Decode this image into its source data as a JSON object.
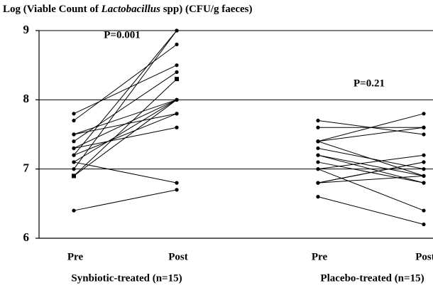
{
  "chart_data": {
    "type": "paired-dot",
    "title": [
      "Log (Viable Count of ",
      "Lactobacillus",
      " spp) (CFU/g faeces)"
    ],
    "ylim": [
      6,
      9
    ],
    "yticks": [
      6,
      7,
      8,
      9
    ],
    "grid": true,
    "color": "#000000",
    "groups": [
      {
        "name": "Synbiotic-treated (n=15)",
        "annotation": "P=0.001",
        "categories": [
          "Pre",
          "Post"
        ],
        "pairs": [
          [
            7.8,
            8.5
          ],
          [
            7.7,
            8.8
          ],
          [
            7.5,
            8.0
          ],
          [
            7.5,
            7.8
          ],
          [
            7.4,
            8.4
          ],
          [
            7.3,
            8.0
          ],
          [
            7.3,
            7.6
          ],
          [
            7.2,
            9.0
          ],
          [
            7.1,
            6.8
          ],
          [
            7.1,
            8.0
          ],
          [
            7.0,
            9.0
          ],
          [
            6.9,
            8.3
          ],
          [
            6.9,
            8.0
          ],
          [
            6.4,
            6.7
          ],
          [
            7.2,
            7.8
          ]
        ],
        "square_pairs": [
          11
        ]
      },
      {
        "name": "Placebo-treated (n=15)",
        "annotation": "P=0.21",
        "categories": [
          "Pre",
          "Post"
        ],
        "pairs": [
          [
            7.7,
            7.5
          ],
          [
            7.6,
            7.6
          ],
          [
            7.4,
            7.8
          ],
          [
            7.4,
            7.6
          ],
          [
            7.4,
            6.9
          ],
          [
            7.3,
            7.0
          ],
          [
            7.2,
            6.9
          ],
          [
            7.1,
            6.8
          ],
          [
            7.0,
            7.2
          ],
          [
            7.0,
            6.4
          ],
          [
            6.8,
            7.1
          ],
          [
            6.8,
            6.9
          ],
          [
            6.8,
            7.1
          ],
          [
            6.6,
            6.2
          ],
          [
            7.2,
            6.8
          ]
        ]
      }
    ]
  }
}
